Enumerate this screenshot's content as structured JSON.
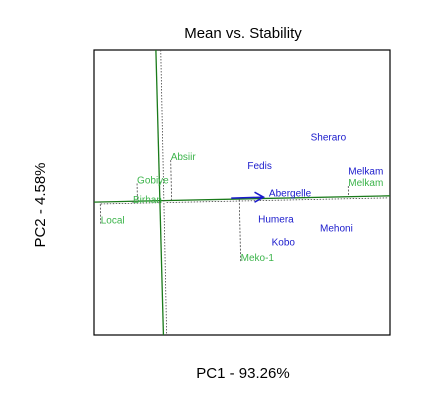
{
  "chart_data": {
    "type": "scatter",
    "title": "Mean vs. Stability",
    "xlabel": "PC1 - 93.26%",
    "ylabel": "PC2 - 4.58%",
    "xlim": [
      -3.2,
      7.8
    ],
    "ylim": [
      -5.2,
      5.8
    ],
    "grid": false,
    "legend": "none",
    "colors": {
      "genotype": "#3cb44b",
      "environment": "#1a1acc",
      "axis_line": "#1a7a1a",
      "projection": "#444444"
    },
    "environments": [
      {
        "label": "Sheraro",
        "x": 4.85,
        "y": 2.3
      },
      {
        "label": "Fedis",
        "x": 2.5,
        "y": 1.2
      },
      {
        "label": "Abergelle",
        "x": 3.3,
        "y": 0.15
      },
      {
        "label": "Humera",
        "x": 2.9,
        "y": -0.85
      },
      {
        "label": "Mehoni",
        "x": 5.2,
        "y": -1.2
      },
      {
        "label": "Kobo",
        "x": 3.4,
        "y": -1.75
      },
      {
        "label": "Melkam",
        "x": 6.25,
        "y": 1.0
      }
    ],
    "genotypes": [
      {
        "label": "Absiir",
        "x": -0.35,
        "y": 1.55
      },
      {
        "label": "Gobiye",
        "x": -1.6,
        "y": 0.65
      },
      {
        "label": "Birhan",
        "x": -1.75,
        "y": -0.1
      },
      {
        "label": "Local",
        "x": -2.95,
        "y": -0.9
      },
      {
        "label": "Meko-1",
        "x": 2.25,
        "y": -2.35
      },
      {
        "label": "Melkam",
        "x": 6.25,
        "y": 0.55
      }
    ],
    "ata_slope": 0.022,
    "ata_arrow_to": {
      "x": 3.1,
      "y": 0.12
    }
  }
}
